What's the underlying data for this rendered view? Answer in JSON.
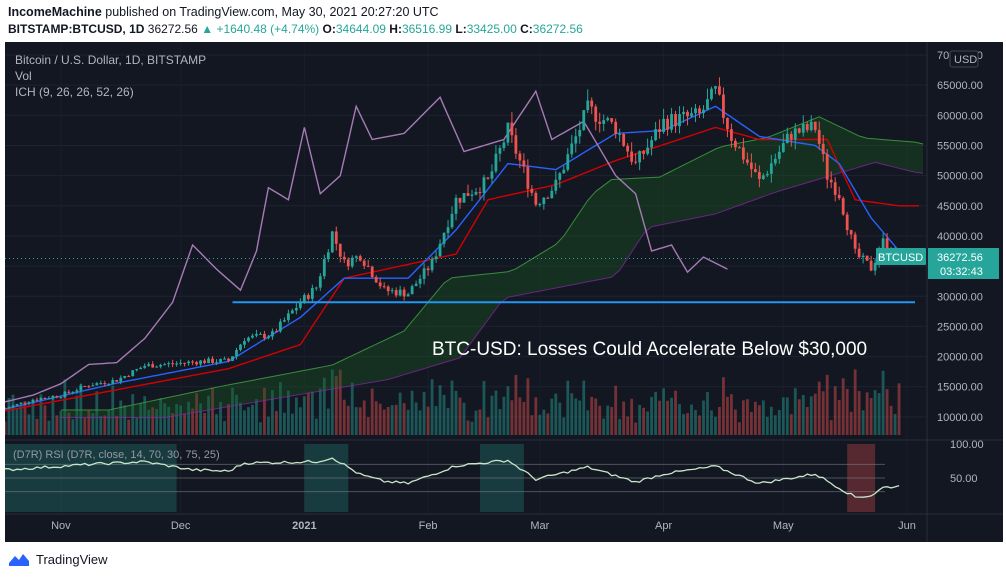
{
  "header": {
    "publisher": "IncomeMachine",
    "published_text": "published on TradingView.com, May 30, 2021 20:27:20 UTC",
    "symbol": "BITSTAMP:BTCUSD, 1D",
    "last": "36272.56",
    "change": "+1640.48 (+4.74%)",
    "o_label": "O:",
    "o": "34644.09",
    "h_label": "H:",
    "h": "36516.99",
    "l_label": "L:",
    "l": "33425.00",
    "c_label": "C:",
    "c": "36272.56"
  },
  "legend": {
    "title": "Bitcoin / U.S. Dollar, 1D, BITSTAMP",
    "vol": "Vol",
    "ich": "ICH (9, 26, 26, 52, 26)",
    "rsi": "(D7R) RSI (D7R, close, 14, 70, 30, 75, 25)"
  },
  "annotation": "BTC-USD: Losses Could Accelerate Below $30,000",
  "price_tag": {
    "symbol": "BTCUSD",
    "price": "36272.56",
    "countdown": "03:32:43"
  },
  "brand": "TradingView",
  "colors": {
    "up": "#26a69a",
    "down": "#ef5350",
    "tenkan": "#2962ff",
    "kijun": "#d50000",
    "lagging": "#a67bb5",
    "support": "#2196f3"
  },
  "chart_data": {
    "type": "candlestick",
    "currency": "USD",
    "x_ticks": [
      "Nov",
      "Dec",
      "2021",
      "Feb",
      "Mar",
      "Apr",
      "May",
      "Jun"
    ],
    "x_range": [
      "2020-10-18",
      "2021-06-06"
    ],
    "y_ticks": [
      "70000.00",
      "65000.00",
      "60000.00",
      "55000.00",
      "50000.00",
      "45000.00",
      "40000.00",
      "35000.00",
      "30000.00",
      "25000.00",
      "20000.00",
      "15000.00",
      "10000.00"
    ],
    "y_range": [
      7000,
      70500
    ],
    "rsi_ticks": [
      "100.00",
      "50.00"
    ],
    "rsi_range": [
      0,
      100
    ],
    "support_level": 29000,
    "close_anchors": [
      [
        "2020-10-18",
        11400
      ],
      [
        "2020-10-25",
        12900
      ],
      [
        "2020-11-01",
        13600
      ],
      [
        "2020-11-08",
        15300
      ],
      [
        "2020-11-15",
        16100
      ],
      [
        "2020-11-22",
        18500
      ],
      [
        "2020-11-29",
        18800
      ],
      [
        "2020-12-06",
        19200
      ],
      [
        "2020-12-13",
        19300
      ],
      [
        "2020-12-17",
        23000
      ],
      [
        "2020-12-24",
        23700
      ],
      [
        "2020-12-31",
        29000
      ],
      [
        "2021-01-04",
        31500
      ],
      [
        "2021-01-08",
        40500
      ],
      [
        "2021-01-11",
        35500
      ],
      [
        "2021-01-15",
        36800
      ],
      [
        "2021-01-21",
        31000
      ],
      [
        "2021-01-27",
        30500
      ],
      [
        "2021-02-02",
        35500
      ],
      [
        "2021-02-08",
        46000
      ],
      [
        "2021-02-16",
        49000
      ],
      [
        "2021-02-21",
        57500
      ],
      [
        "2021-02-28",
        45500
      ],
      [
        "2021-03-05",
        48500
      ],
      [
        "2021-03-13",
        61000
      ],
      [
        "2021-03-20",
        58000
      ],
      [
        "2021-03-25",
        51800
      ],
      [
        "2021-04-01",
        58900
      ],
      [
        "2021-04-10",
        60000
      ],
      [
        "2021-04-14",
        63900
      ],
      [
        "2021-04-18",
        56500
      ],
      [
        "2021-04-25",
        49000
      ],
      [
        "2021-05-03",
        57000
      ],
      [
        "2021-05-09",
        58000
      ],
      [
        "2021-05-12",
        50000
      ],
      [
        "2021-05-15",
        47000
      ],
      [
        "2021-05-19",
        37000
      ],
      [
        "2021-05-23",
        34700
      ],
      [
        "2021-05-26",
        39000
      ],
      [
        "2021-05-30",
        36272.56
      ]
    ],
    "tenkan_anchors": [
      [
        "2020-10-18",
        11300
      ],
      [
        "2020-11-15",
        15600
      ],
      [
        "2020-12-13",
        19200
      ],
      [
        "2020-12-31",
        26500
      ],
      [
        "2021-01-11",
        33000
      ],
      [
        "2021-01-27",
        33000
      ],
      [
        "2021-02-08",
        41000
      ],
      [
        "2021-02-21",
        52000
      ],
      [
        "2021-03-05",
        51000
      ],
      [
        "2021-03-20",
        57000
      ],
      [
        "2021-04-01",
        57500
      ],
      [
        "2021-04-14",
        61500
      ],
      [
        "2021-04-25",
        56500
      ],
      [
        "2021-05-09",
        55000
      ],
      [
        "2021-05-15",
        52000
      ],
      [
        "2021-05-23",
        43000
      ],
      [
        "2021-05-30",
        37500
      ]
    ],
    "kijun_anchors": [
      [
        "2020-10-18",
        11000
      ],
      [
        "2020-11-15",
        14500
      ],
      [
        "2020-12-13",
        18000
      ],
      [
        "2020-12-31",
        22000
      ],
      [
        "2021-01-04",
        26000
      ],
      [
        "2021-01-11",
        33000
      ],
      [
        "2021-02-08",
        37000
      ],
      [
        "2021-02-16",
        46000
      ],
      [
        "2021-03-05",
        48500
      ],
      [
        "2021-03-20",
        52500
      ],
      [
        "2021-04-14",
        58000
      ],
      [
        "2021-04-25",
        56000
      ],
      [
        "2021-05-12",
        56000
      ],
      [
        "2021-05-19",
        46000
      ],
      [
        "2021-05-30",
        45000
      ],
      [
        "2021-06-04",
        45000
      ]
    ],
    "lagging_anchors": [
      [
        "2020-10-18",
        12500
      ],
      [
        "2020-10-25",
        13600
      ],
      [
        "2020-11-01",
        15500
      ],
      [
        "2020-11-08",
        18700
      ],
      [
        "2020-11-15",
        19000
      ],
      [
        "2020-11-22",
        23000
      ],
      [
        "2020-11-29",
        29000
      ],
      [
        "2020-12-04",
        38500
      ],
      [
        "2020-12-10",
        34500
      ],
      [
        "2020-12-16",
        31000
      ],
      [
        "2020-12-20",
        37500
      ],
      [
        "2020-12-23",
        48000
      ],
      [
        "2020-12-28",
        46000
      ],
      [
        "2021-01-01",
        58000
      ],
      [
        "2021-01-05",
        47000
      ],
      [
        "2021-01-10",
        50000
      ],
      [
        "2021-01-14",
        61500
      ],
      [
        "2021-01-18",
        56000
      ],
      [
        "2021-01-26",
        57000
      ],
      [
        "2021-02-04",
        63000
      ],
      [
        "2021-02-10",
        54000
      ],
      [
        "2021-02-20",
        56000
      ],
      [
        "2021-02-28",
        64000
      ],
      [
        "2021-03-04",
        56000
      ],
      [
        "2021-03-12",
        59000
      ],
      [
        "2021-03-20",
        50000
      ],
      [
        "2021-03-25",
        47000
      ],
      [
        "2021-03-29",
        37500
      ],
      [
        "2021-04-03",
        38500
      ],
      [
        "2021-04-07",
        34000
      ],
      [
        "2021-04-11",
        36500
      ],
      [
        "2021-04-17",
        34500
      ]
    ],
    "rsi_anchors": [
      [
        "2020-10-18",
        62
      ],
      [
        "2020-11-08",
        70
      ],
      [
        "2020-11-22",
        74
      ],
      [
        "2020-12-04",
        62
      ],
      [
        "2020-12-13",
        60
      ],
      [
        "2020-12-17",
        72
      ],
      [
        "2021-01-04",
        74
      ],
      [
        "2021-01-08",
        80
      ],
      [
        "2021-01-15",
        55
      ],
      [
        "2021-01-21",
        45
      ],
      [
        "2021-01-27",
        42
      ],
      [
        "2021-02-08",
        68
      ],
      [
        "2021-02-21",
        76
      ],
      [
        "2021-02-28",
        48
      ],
      [
        "2021-03-13",
        66
      ],
      [
        "2021-03-25",
        44
      ],
      [
        "2021-04-01",
        56
      ],
      [
        "2021-04-14",
        67
      ],
      [
        "2021-04-25",
        42
      ],
      [
        "2021-05-09",
        56
      ],
      [
        "2021-05-19",
        22
      ],
      [
        "2021-05-23",
        24
      ],
      [
        "2021-05-26",
        36
      ],
      [
        "2021-05-30",
        38
      ]
    ]
  }
}
